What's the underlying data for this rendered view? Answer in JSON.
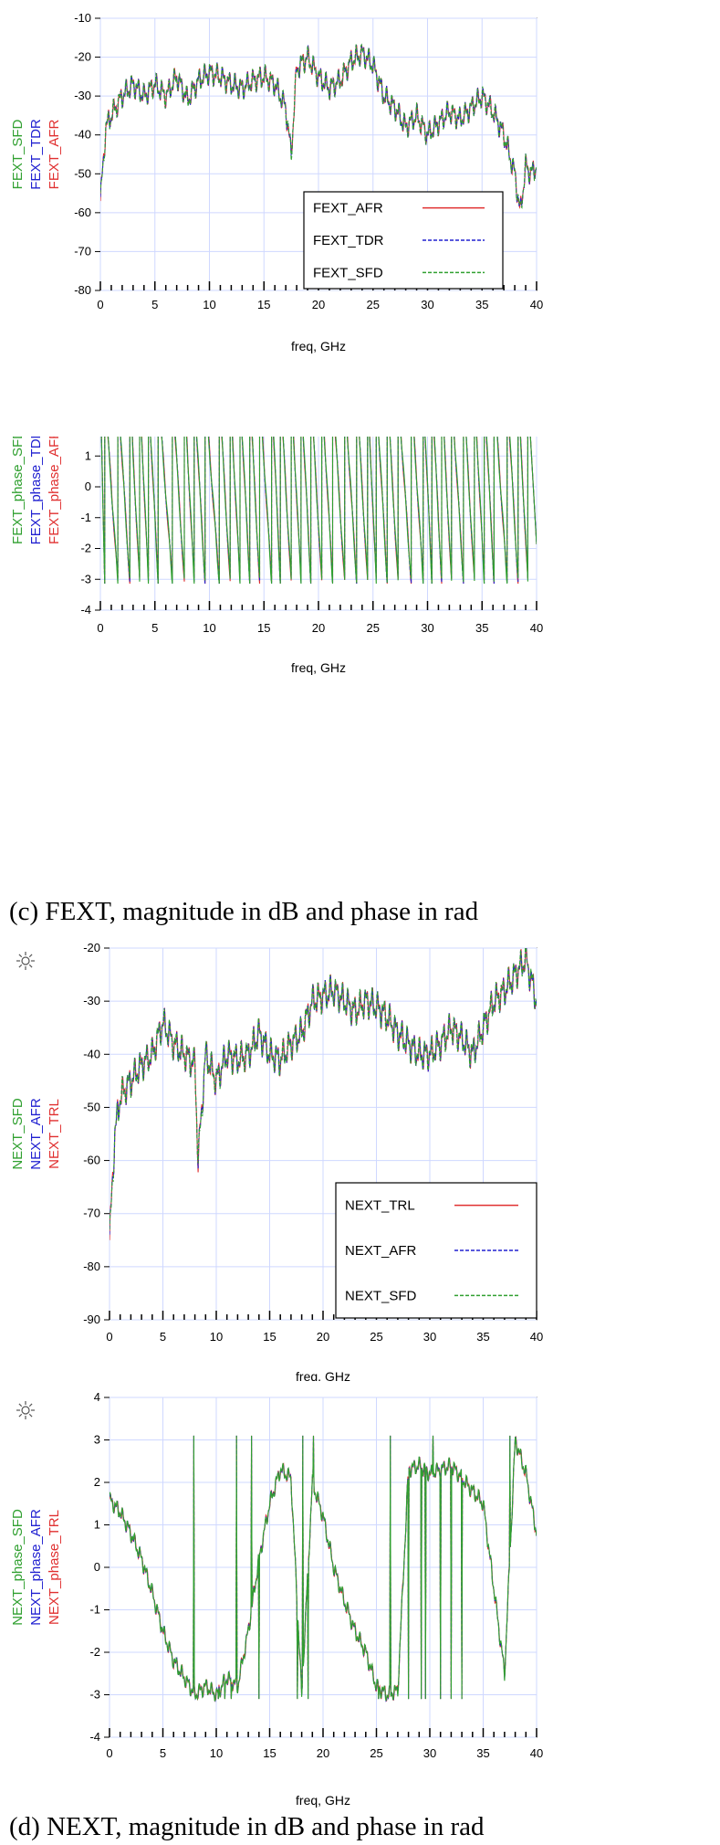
{
  "chart_data": [
    {
      "type": "line",
      "xlabel": "freq, GHz",
      "ylabels": [
        "FEXT_SFD",
        "FEXT_TDR",
        "FEXT_AFR"
      ],
      "xlim": [
        0,
        40
      ],
      "ylim": [
        -80,
        -10
      ],
      "x_ticks": [
        0,
        5,
        10,
        15,
        20,
        25,
        30,
        35,
        40
      ],
      "y_ticks": [
        -80,
        -70,
        -60,
        -50,
        -40,
        -30,
        -20,
        -10
      ],
      "grid": true,
      "legend_position": "bottom-right",
      "series": [
        {
          "name": "FEXT_AFR",
          "color": "#e03030",
          "style": "solid"
        },
        {
          "name": "FEXT_TDR",
          "color": "#2020d0",
          "style": "dashed"
        },
        {
          "name": "FEXT_SFD",
          "color": "#30a030",
          "style": "dashed"
        }
      ],
      "x": [
        0,
        0.5,
        1,
        2,
        3,
        4,
        5,
        6,
        7,
        8,
        9,
        10,
        11,
        12,
        13,
        14,
        15,
        16,
        17,
        17.5,
        18,
        19,
        20,
        21,
        22,
        23,
        24,
        25,
        26,
        27,
        28,
        29,
        30,
        31,
        32,
        33,
        34,
        35,
        36,
        37,
        38,
        38.5,
        39,
        39.5,
        40
      ],
      "envelope": [
        -57,
        -38,
        -35,
        -30,
        -27,
        -30,
        -27,
        -30,
        -25,
        -31,
        -26,
        -24,
        -25,
        -27,
        -28,
        -26,
        -25,
        -27,
        -33,
        -45,
        -23,
        -20,
        -25,
        -28,
        -26,
        -21,
        -19,
        -22,
        -30,
        -33,
        -38,
        -35,
        -40,
        -37,
        -34,
        -36,
        -33,
        -30,
        -34,
        -40,
        -50,
        -60,
        -48,
        -50,
        -48
      ],
      "ripple": 4
    },
    {
      "type": "line",
      "xlabel": "freq, GHz",
      "ylabels": [
        "FEXT_phase_SFD",
        "FEXT_phase_TDR",
        "FEXT_phase_AFR"
      ],
      "xlim": [
        0,
        40
      ],
      "ylim": [
        -4,
        4
      ],
      "x_ticks": [
        0,
        5,
        10,
        15,
        20,
        25,
        30,
        35,
        40
      ],
      "y_ticks": [
        -4,
        -3,
        -2,
        -1,
        0,
        1,
        2,
        3,
        4
      ],
      "grid": true,
      "series": [
        {
          "name": "FEXT_phase_AFR",
          "color": "#e03030",
          "style": "solid"
        },
        {
          "name": "FEXT_phase_TDR",
          "color": "#2020d0",
          "style": "dashed"
        },
        {
          "name": "FEXT_phase_SFD",
          "color": "#30a030",
          "style": "solid"
        }
      ],
      "wrap_x": [
        0.4,
        1.6,
        2.7,
        3.6,
        4.4,
        5.3,
        6.6,
        7.7,
        8.6,
        9.6,
        10.9,
        11.9,
        12.8,
        13.7,
        14.6,
        15.7,
        16.5,
        17.5,
        18.4,
        19.3,
        20.3,
        21.3,
        22.4,
        23.5,
        24.5,
        25.3,
        26.3,
        27.3,
        28.5,
        29.6,
        30.4,
        31.3,
        32.2,
        33.3,
        34.3,
        35.2,
        36.1,
        37.3,
        38.3,
        39.2
      ]
    },
    {
      "type": "line",
      "xlabel": "freq, GHz",
      "ylabels": [
        "NEXT_SFD",
        "NEXT_AFR",
        "NEXT_TRL"
      ],
      "xlim": [
        0,
        40
      ],
      "ylim": [
        -90,
        -20
      ],
      "x_ticks": [
        0,
        5,
        10,
        15,
        20,
        25,
        30,
        35,
        40
      ],
      "y_ticks": [
        -90,
        -80,
        -70,
        -60,
        -50,
        -40,
        -30,
        -20
      ],
      "grid": true,
      "legend_position": "bottom-right",
      "series": [
        {
          "name": "NEXT_TRL",
          "color": "#e03030",
          "style": "solid"
        },
        {
          "name": "NEXT_AFR",
          "color": "#2020d0",
          "style": "dashed"
        },
        {
          "name": "NEXT_SFD",
          "color": "#30a030",
          "style": "dashed"
        }
      ],
      "x": [
        0,
        0.5,
        1,
        2,
        3,
        4,
        5,
        6,
        7,
        8,
        8.3,
        9,
        10,
        11,
        12,
        13,
        14,
        15,
        16,
        17,
        18,
        19,
        20,
        21,
        22,
        23,
        24,
        25,
        26,
        27,
        28,
        29,
        30,
        31,
        32,
        33,
        34,
        35,
        36,
        37,
        38,
        39,
        40
      ],
      "envelope": [
        -75,
        -55,
        -48,
        -45,
        -42,
        -40,
        -34,
        -38,
        -40,
        -42,
        -60,
        -40,
        -45,
        -40,
        -41,
        -40,
        -36,
        -40,
        -41,
        -38,
        -36,
        -30,
        -29,
        -28,
        -30,
        -32,
        -30,
        -31,
        -33,
        -36,
        -38,
        -40,
        -40,
        -38,
        -35,
        -37,
        -40,
        -35,
        -30,
        -28,
        -25,
        -22,
        -30
      ],
      "ripple": 4
    },
    {
      "type": "line",
      "xlabel": "freq, GHz",
      "ylabels": [
        "NEXT_phase_SFD",
        "NEXT_phase_AFR",
        "NEXT_phase_TRL"
      ],
      "xlim": [
        0,
        40
      ],
      "ylim": [
        -4,
        4
      ],
      "x_ticks": [
        0,
        5,
        10,
        15,
        20,
        25,
        30,
        35,
        40
      ],
      "y_ticks": [
        -4,
        -3,
        -2,
        -1,
        0,
        1,
        2,
        3,
        4
      ],
      "grid": true,
      "series": [
        {
          "name": "NEXT_phase_TRL",
          "color": "#e03030",
          "style": "solid"
        },
        {
          "name": "NEXT_phase_AFR",
          "color": "#2020d0",
          "style": "dashed"
        },
        {
          "name": "NEXT_phase_SFD",
          "color": "#30a030",
          "style": "solid"
        }
      ],
      "x": [
        0,
        1,
        2,
        3,
        4,
        5,
        6,
        7,
        8,
        9,
        10,
        11,
        12,
        13,
        14,
        15,
        16,
        17,
        18,
        19,
        20,
        21,
        22,
        23,
        24,
        25,
        26,
        27,
        28,
        29,
        30,
        31,
        32,
        33,
        34,
        35,
        36,
        37,
        38,
        39,
        40
      ],
      "envelope": [
        1.6,
        1.3,
        0.8,
        0.2,
        -0.6,
        -1.5,
        -2.2,
        -2.6,
        -3.0,
        -2.8,
        -3.0,
        -2.6,
        -2.8,
        -1.5,
        0.2,
        1.5,
        2.3,
        2.1,
        -3.0,
        2.0,
        1.2,
        0.0,
        -0.8,
        -1.5,
        -2.0,
        -2.8,
        -3.0,
        -2.9,
        2.3,
        2.4,
        2.2,
        2.3,
        2.4,
        2.1,
        1.8,
        1.5,
        -0.5,
        -2.5,
        3.0,
        2.2,
        0.8
      ],
      "wrap_x": [
        7.9,
        10.2,
        10.8,
        11.4,
        11.9,
        13.3,
        14.0,
        17.6,
        18.1,
        18.6,
        19.1,
        25.2,
        26.3,
        28.0,
        29.2,
        29.6,
        30.3,
        31.0,
        32.0,
        33.0,
        37.5
      ]
    }
  ],
  "captions": {
    "c": "(c) FEXT, magnitude in dB and phase in rad",
    "d": "(d) NEXT, magnitude in dB and phase in rad"
  }
}
